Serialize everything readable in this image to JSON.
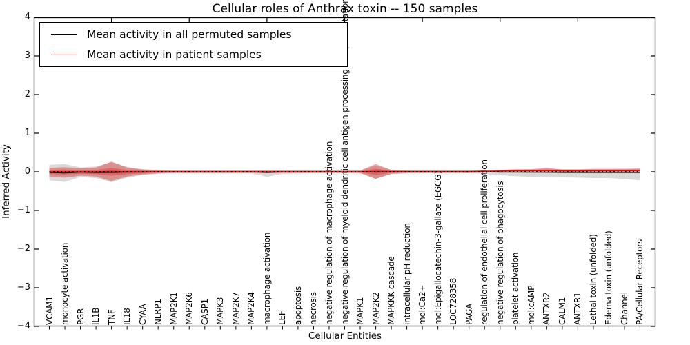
{
  "figure": {
    "title": "Cellular roles of Anthrax toxin -- 150 samples",
    "xlabel": "Cellular Entities",
    "ylabel": "Inferred Activity"
  },
  "legend": {
    "items": [
      {
        "label": "Mean activity in all permuted samples",
        "color": "#000000"
      },
      {
        "label": "Mean activity in patient samples",
        "color": "#ff0000"
      }
    ]
  },
  "chart_data": {
    "type": "line",
    "title": "Cellular roles of Anthrax toxin -- 150 samples",
    "xlabel": "Cellular Entities",
    "ylabel": "Inferred Activity",
    "ylim": [
      -4,
      4
    ],
    "yticks": [
      4,
      3,
      2,
      1,
      0,
      -1,
      -2,
      -3,
      -4
    ],
    "grid": false,
    "legend_position": "upper left",
    "categories": [
      "VCAM1",
      "monocyte activation",
      "PGR",
      "IL1B",
      "TNF",
      "IL18",
      "CYAA",
      "NLRP1",
      "MAP2K1",
      "MAP2K6",
      "CASP1",
      "MAPK3",
      "MAP2K7",
      "MAP2K4",
      "macrophage activation",
      "LEF",
      "apoptosis",
      "necrosis",
      "negative regulation of macrophage activation",
      "negative regulation of myeloid dendritic cell antigen processing and presentation",
      "MAPK1",
      "MAP2K2",
      "MAPKKK cascade",
      "intracellular pH reduction",
      "mol:Ca2+",
      "mol:Epigallocatechin-3-gallate (EGCG)",
      "LOC728358",
      "PAGA",
      "regulation of endothelial cell proliferation",
      "negative regulation of phagocytosis",
      "platelet activation",
      "mol:cAMP",
      "ANTXR2",
      "CALM1",
      "ANTXR1",
      "Lethal toxin (unfolded)",
      "Edema toxin (unfolded)",
      "Channel",
      "PA/Cellular Receptors"
    ],
    "series": [
      {
        "id": "permuted-mean-line",
        "name": "Mean activity in all permuted samples",
        "color": "#000000",
        "width": 1,
        "values": [
          -0.02,
          -0.03,
          -0.01,
          -0.02,
          -0.02,
          -0.01,
          -0.01,
          -0.005,
          -0.005,
          -0.005,
          -0.005,
          -0.005,
          -0.005,
          -0.005,
          -0.02,
          -0.005,
          -0.005,
          -0.005,
          -0.005,
          -0.005,
          -0.005,
          -0.01,
          -0.005,
          -0.005,
          -0.005,
          -0.005,
          -0.005,
          -0.005,
          -0.005,
          -0.01,
          -0.01,
          -0.015,
          -0.015,
          -0.02,
          -0.02,
          -0.02,
          -0.02,
          -0.02,
          -0.02
        ]
      },
      {
        "id": "patient-mean-line",
        "name": "Mean activity in patient samples",
        "color": "#f00000",
        "width": 1.6,
        "values": [
          0,
          0,
          0,
          0,
          0.01,
          0,
          0,
          0,
          0,
          0,
          0,
          0,
          0,
          0,
          0,
          0,
          0,
          0,
          0,
          0,
          0,
          0.01,
          0.005,
          0.005,
          0.005,
          0.005,
          0.005,
          0.005,
          0.01,
          0.02,
          0.03,
          0.03,
          0.035,
          0.025,
          0.025,
          0.03,
          0.03,
          0.03,
          0.035
        ]
      }
    ],
    "bands": [
      {
        "id": "permuted-spread-band",
        "name": "permuted samples activity spread",
        "color": "#bfbfbf",
        "opacity": 0.6,
        "upper": [
          0.18,
          0.2,
          0.11,
          0.14,
          0.25,
          0.13,
          0.07,
          0.05,
          0.04,
          0.04,
          0.04,
          0.04,
          0.04,
          0.04,
          0.05,
          0.04,
          0.035,
          0.03,
          0.03,
          0.03,
          0.04,
          0.16,
          0.05,
          0.035,
          0.03,
          0.03,
          0.03,
          0.03,
          0.04,
          0.04,
          0.05,
          0.06,
          0.08,
          0.07,
          0.07,
          0.08,
          0.08,
          0.09,
          0.1
        ],
        "lower": [
          -0.22,
          -0.26,
          -0.13,
          -0.16,
          -0.27,
          -0.15,
          -0.08,
          -0.05,
          -0.04,
          -0.04,
          -0.04,
          -0.04,
          -0.04,
          -0.04,
          -0.13,
          -0.05,
          -0.04,
          -0.035,
          -0.03,
          -0.03,
          -0.04,
          -0.18,
          -0.06,
          -0.04,
          -0.035,
          -0.03,
          -0.03,
          -0.035,
          -0.05,
          -0.09,
          -0.11,
          -0.13,
          -0.13,
          -0.14,
          -0.15,
          -0.16,
          -0.16,
          -0.18,
          -0.22
        ]
      },
      {
        "id": "patient-spread-outer-band",
        "name": "patient samples activity spread (outer)",
        "color": "#dd2c2c",
        "opacity": 0.42,
        "upper": [
          0.1,
          0.12,
          0.09,
          0.11,
          0.26,
          0.11,
          0.06,
          0.04,
          0.03,
          0.03,
          0.03,
          0.03,
          0.03,
          0.03,
          0.03,
          0.03,
          0.03,
          0.03,
          0.03,
          0.03,
          0.03,
          0.2,
          0.05,
          0.03,
          0.03,
          0.03,
          0.03,
          0.03,
          0.04,
          0.05,
          0.07,
          0.07,
          0.1,
          0.06,
          0.06,
          0.07,
          0.07,
          0.07,
          0.08
        ],
        "lower": [
          -0.13,
          -0.15,
          -0.1,
          -0.12,
          -0.24,
          -0.12,
          -0.07,
          -0.04,
          -0.03,
          -0.03,
          -0.03,
          -0.03,
          -0.03,
          -0.03,
          -0.03,
          -0.03,
          -0.03,
          -0.03,
          -0.03,
          -0.03,
          -0.03,
          -0.18,
          -0.05,
          -0.03,
          -0.03,
          -0.03,
          -0.03,
          -0.03,
          -0.02,
          -0.02,
          -0.02,
          -0.02,
          -0.03,
          -0.02,
          -0.02,
          -0.02,
          -0.02,
          -0.02,
          -0.03
        ]
      },
      {
        "id": "patient-spread-core-band",
        "name": "patient samples activity spread (core)",
        "color": "#dd2c2c",
        "opacity": 0.42,
        "upper": [
          0.05,
          0.06,
          0.04,
          0.05,
          0.1,
          0.05,
          0.03,
          0.02,
          0.015,
          0.015,
          0.015,
          0.015,
          0.015,
          0.015,
          0.015,
          0.015,
          0.015,
          0.015,
          0.015,
          0.015,
          0.015,
          0.08,
          0.025,
          0.015,
          0.015,
          0.015,
          0.015,
          0.015,
          0.02,
          0.03,
          0.04,
          0.045,
          0.055,
          0.04,
          0.04,
          0.045,
          0.045,
          0.045,
          0.05
        ],
        "lower": [
          -0.06,
          -0.07,
          -0.05,
          -0.06,
          -0.1,
          -0.06,
          -0.035,
          -0.02,
          -0.015,
          -0.015,
          -0.015,
          -0.015,
          -0.015,
          -0.015,
          -0.015,
          -0.015,
          -0.015,
          -0.015,
          -0.015,
          -0.015,
          -0.015,
          -0.08,
          -0.025,
          -0.015,
          -0.015,
          -0.015,
          -0.015,
          -0.015,
          -0.005,
          0,
          0.01,
          0.01,
          0.015,
          0.005,
          0.005,
          0.01,
          0.01,
          0.01,
          0.015
        ]
      }
    ],
    "zero_line": {
      "style": "dotted",
      "color": "#000000",
      "value": 0
    }
  }
}
